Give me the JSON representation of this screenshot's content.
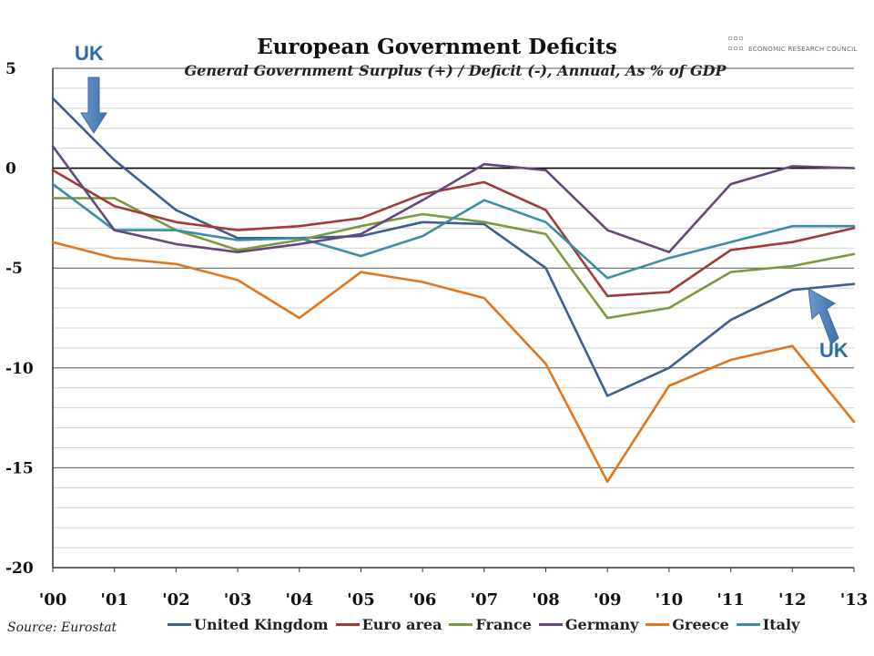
{
  "chart_data": {
    "type": "line",
    "title": "European Government Deficits",
    "subtitle": "General Government Surplus (+) / Deficit (-), Annual, As % of GDP",
    "categories": [
      "'00",
      "'01",
      "'02",
      "'03",
      "'04",
      "'05",
      "'06",
      "'07",
      "'08",
      "'09",
      "'10",
      "'11",
      "'12",
      "'13"
    ],
    "ylim": [
      -20,
      5
    ],
    "yticks": [
      5,
      0,
      -5,
      -10,
      -15,
      -20
    ],
    "ytick_labels": [
      "5",
      "0",
      "-5",
      "-10",
      "-15",
      "-20"
    ],
    "grid": true,
    "legend_position": "bottom",
    "series": [
      {
        "name": "United Kingdom",
        "color": "#3d5f8f",
        "values": [
          3.5,
          0.4,
          -2.1,
          -3.5,
          -3.5,
          -3.4,
          -2.7,
          -2.8,
          -5.0,
          -11.4,
          -10.0,
          -7.6,
          -6.1,
          -5.8
        ]
      },
      {
        "name": "Euro area",
        "color": "#a23a3a",
        "values": [
          -0.1,
          -1.9,
          -2.7,
          -3.1,
          -2.9,
          -2.5,
          -1.3,
          -0.7,
          -2.1,
          -6.4,
          -6.2,
          -4.1,
          -3.7,
          -3.0
        ]
      },
      {
        "name": "France",
        "color": "#7a9a3c",
        "values": [
          -1.5,
          -1.5,
          -3.1,
          -4.1,
          -3.6,
          -2.9,
          -2.3,
          -2.7,
          -3.3,
          -7.5,
          -7.0,
          -5.2,
          -4.9,
          -4.3
        ]
      },
      {
        "name": "Germany",
        "color": "#64477c",
        "values": [
          1.1,
          -3.1,
          -3.8,
          -4.2,
          -3.8,
          -3.3,
          -1.6,
          0.2,
          -0.1,
          -3.1,
          -4.2,
          -0.8,
          0.1,
          0.0
        ]
      },
      {
        "name": "Greece",
        "color": "#e0761f",
        "values": [
          -3.7,
          -4.5,
          -4.8,
          -5.6,
          -7.5,
          -5.2,
          -5.7,
          -6.5,
          -9.8,
          -15.7,
          -10.9,
          -9.6,
          -8.9,
          -12.7
        ]
      },
      {
        "name": "Italy",
        "color": "#3a8ea4",
        "values": [
          -0.8,
          -3.1,
          -3.1,
          -3.6,
          -3.5,
          -4.4,
          -3.4,
          -1.6,
          -2.7,
          -5.5,
          -4.5,
          -3.7,
          -2.9,
          -2.9
        ]
      }
    ]
  },
  "brand": {
    "name": "ECONOMIC RESEARCH COUNCIL"
  },
  "annotations": {
    "uk_top": "UK",
    "uk_bottom": "UK",
    "arrow_color": "#4a7ab8"
  },
  "source": "Source: Eurostat"
}
